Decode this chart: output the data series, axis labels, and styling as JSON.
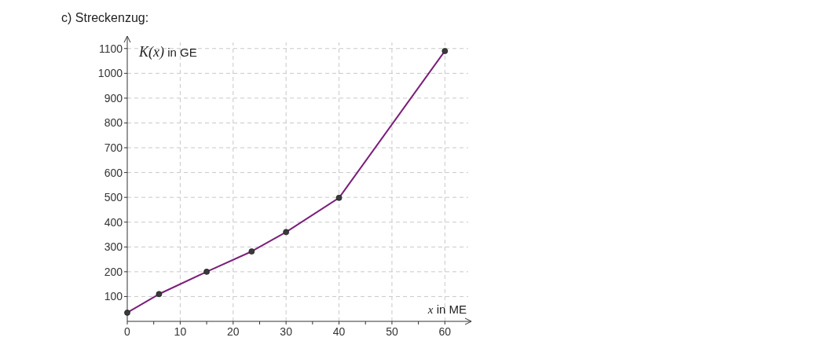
{
  "chart_data": {
    "type": "line",
    "title": "c) Streckenzug:",
    "xlabel": "x in ME",
    "ylabel": "K(x) in GE",
    "x": [
      0,
      6,
      15,
      23.5,
      30,
      40,
      60
    ],
    "series": [
      {
        "color": "#7b1f7b",
        "values": [
          35,
          110,
          200,
          282,
          360,
          498,
          1090
        ]
      }
    ],
    "xlim": [
      0,
      65
    ],
    "ylim": [
      0,
      1150
    ],
    "xticks": [
      0,
      {
        "value": 5,
        "label": null
      },
      10,
      {
        "value": 15,
        "label": null
      },
      20,
      {
        "value": 25,
        "label": null
      },
      30,
      {
        "value": 35,
        "label": null
      },
      40,
      {
        "value": 45,
        "label": null
      },
      50,
      {
        "value": 55,
        "label": null
      },
      60
    ],
    "yticks": [
      100,
      200,
      300,
      400,
      500,
      600,
      700,
      800,
      900,
      1000,
      1100
    ],
    "grid": true,
    "marker": "circle",
    "line_style": "solid"
  }
}
